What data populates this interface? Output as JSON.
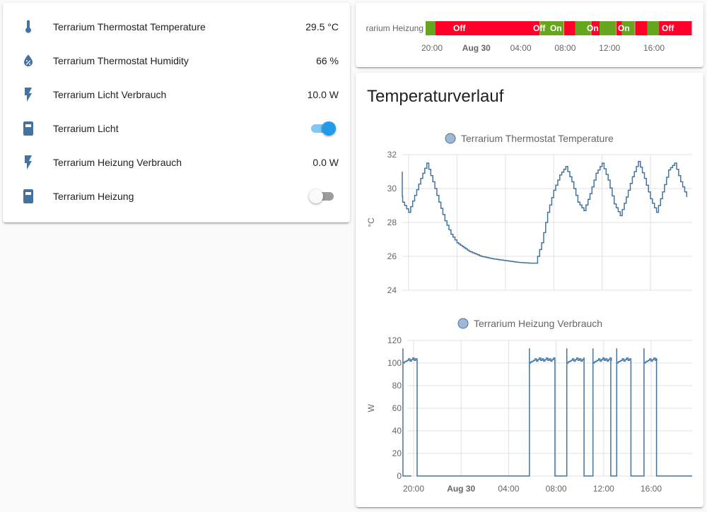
{
  "entities": [
    {
      "name": "Terrarium Thermostat Temperature",
      "state": "29.5 °C",
      "icon": "thermometer-icon",
      "kind": "sensor"
    },
    {
      "name": "Terrarium Thermostat Humidity",
      "state": "66 %",
      "icon": "water-percent-icon",
      "kind": "sensor"
    },
    {
      "name": "Terrarium Licht Verbrauch",
      "state": "10.0 W",
      "icon": "flash-icon",
      "kind": "sensor"
    },
    {
      "name": "Terrarium Licht",
      "state": "on",
      "icon": "power-socket-icon",
      "kind": "switch"
    },
    {
      "name": "Terrarium Heizung Verbrauch",
      "state": "0.0 W",
      "icon": "flash-icon",
      "kind": "sensor"
    },
    {
      "name": "Terrarium Heizung",
      "state": "off",
      "icon": "power-socket-icon",
      "kind": "switch"
    }
  ],
  "colors": {
    "icon": "#44739e",
    "on": "#66a61e",
    "off": "#ff0029",
    "line": "#44739e",
    "legend_dot": "#9fb9d2"
  },
  "timeline": {
    "label": "rarium Heizung",
    "segments_labels": [
      "Off",
      "Off",
      "On",
      "On",
      "On",
      "Off"
    ],
    "ticks": [
      "20:00",
      "Aug 30",
      "04:00",
      "08:00",
      "12:00",
      "16:00"
    ]
  },
  "history": {
    "title": "Temperaturverlauf"
  },
  "chart_data": [
    {
      "type": "line",
      "legend": "Terrarium Thermostat Temperature",
      "ylabel": "°C",
      "ylim": [
        24,
        32
      ],
      "yticks": [
        24,
        26,
        28,
        30,
        32
      ],
      "xticks": [
        "20:00",
        "Aug 30",
        "04:00",
        "08:00",
        "12:00",
        "16:00"
      ],
      "x_hours": [
        18.5,
        19.0,
        19.5,
        20.0,
        20.5,
        21.0,
        21.5,
        22.0,
        22.5,
        23.0,
        23.5,
        24.0,
        25.0,
        26.0,
        27.0,
        28.0,
        29.0,
        30.0,
        30.5,
        31.0,
        31.5,
        32.0,
        32.5,
        33.0,
        33.5,
        34.0,
        34.5,
        35.0,
        35.5,
        36.0,
        36.5,
        37.0,
        37.5,
        38.0,
        38.5,
        39.0,
        39.5,
        40.0,
        40.5,
        41.0,
        41.5,
        42.0,
        42.5,
        43.0
      ],
      "values": [
        31.0,
        30.2,
        29.2,
        28.6,
        29.6,
        30.6,
        31.5,
        30.4,
        29.2,
        28.1,
        27.3,
        26.8,
        26.3,
        26.0,
        25.85,
        25.75,
        25.65,
        25.6,
        25.6,
        26.8,
        28.6,
        29.9,
        30.8,
        31.3,
        30.4,
        29.2,
        28.7,
        29.7,
        30.9,
        31.5,
        30.5,
        29.1,
        28.4,
        29.5,
        30.7,
        31.6,
        30.6,
        29.4,
        28.6,
        29.8,
        31.1,
        31.5,
        30.4,
        29.5
      ]
    },
    {
      "type": "line",
      "legend": "Terrarium Heizung Verbrauch",
      "ylabel": "W",
      "ylim": [
        0,
        120
      ],
      "yticks": [
        0,
        20,
        40,
        60,
        80,
        100,
        120
      ],
      "xticks": [
        "20:00",
        "Aug 30",
        "04:00",
        "08:00",
        "12:00",
        "16:00"
      ],
      "on_intervals": [
        [
          19.1,
          20.3
        ],
        [
          29.75,
          31.9
        ],
        [
          32.9,
          34.35
        ],
        [
          35.1,
          36.6
        ],
        [
          37.1,
          38.3
        ],
        [
          39.4,
          40.45
        ]
      ],
      "on_level": 103,
      "on_spike": 113,
      "off_level": 0
    }
  ]
}
